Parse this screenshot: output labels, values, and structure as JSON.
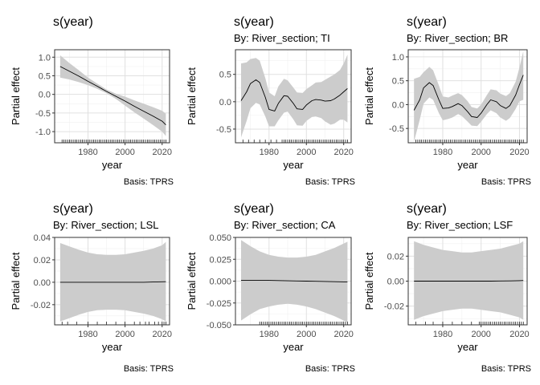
{
  "chart_data": [
    {
      "type": "line",
      "title": "s(year)",
      "subtitle": "",
      "xlabel": "year",
      "ylabel": "Partial effect",
      "caption": "Basis: TPRS",
      "xlim": [
        1962,
        2024
      ],
      "ylim": [
        -1.3,
        1.2
      ],
      "xticks": [
        1980,
        2000,
        2020
      ],
      "yticks": [
        -1.0,
        -0.5,
        0.0,
        0.5,
        1.0
      ],
      "ytick_labels": [
        "-1.0",
        "-0.5",
        "0.0",
        "0.5",
        "1.0"
      ],
      "x": [
        1965,
        1970,
        1975,
        1980,
        1985,
        1990,
        1995,
        2000,
        2005,
        2010,
        2015,
        2020,
        2022
      ],
      "y": [
        0.75,
        0.62,
        0.49,
        0.35,
        0.22,
        0.08,
        -0.05,
        -0.18,
        -0.32,
        -0.45,
        -0.58,
        -0.72,
        -0.82
      ],
      "lower": [
        0.45,
        0.4,
        0.33,
        0.25,
        0.15,
        0.03,
        -0.12,
        -0.3,
        -0.48,
        -0.65,
        -0.82,
        -1.0,
        -1.12
      ],
      "upper": [
        1.05,
        0.84,
        0.65,
        0.45,
        0.29,
        0.13,
        0.02,
        -0.06,
        -0.16,
        -0.25,
        -0.34,
        -0.44,
        -0.52
      ],
      "rug": [
        1966,
        1967,
        1968,
        1969,
        1970,
        1971,
        1972,
        1973,
        1974,
        1975,
        1976,
        1977,
        1978,
        1979,
        1980,
        1981,
        1982,
        1983,
        1984,
        1985,
        1986,
        1987,
        1988,
        1989,
        1990,
        1991,
        1992,
        1993,
        1994,
        1995,
        1996,
        1997,
        1998,
        1999,
        2000,
        2001,
        2002,
        2003,
        2004,
        2005,
        2006,
        2007,
        2008,
        2009,
        2010,
        2011,
        2012,
        2013,
        2014,
        2015,
        2016,
        2017,
        2018,
        2019,
        2020,
        2021,
        2022
      ]
    },
    {
      "type": "line",
      "title": "s(year)",
      "subtitle": "By: River_section; TI",
      "xlabel": "year",
      "ylabel": "Partial effect",
      "caption": "Basis: TPRS",
      "xlim": [
        1962,
        2024
      ],
      "ylim": [
        -0.75,
        0.95
      ],
      "xticks": [
        1980,
        2000,
        2020
      ],
      "yticks": [
        -0.5,
        0.0,
        0.5
      ],
      "ytick_labels": [
        "-0.5",
        "0.0",
        "0.5"
      ],
      "x": [
        1965,
        1968,
        1970,
        1973,
        1975,
        1978,
        1980,
        1983,
        1985,
        1988,
        1990,
        1993,
        1995,
        1998,
        2000,
        2003,
        2005,
        2008,
        2010,
        2013,
        2015,
        2018,
        2020,
        2022
      ],
      "y": [
        0.02,
        0.18,
        0.33,
        0.4,
        0.35,
        0.08,
        -0.14,
        -0.17,
        -0.03,
        0.11,
        0.1,
        -0.03,
        -0.13,
        -0.14,
        -0.06,
        0.02,
        0.04,
        0.03,
        0.01,
        0.02,
        0.05,
        0.12,
        0.18,
        0.24
      ],
      "lower": [
        -0.65,
        -0.35,
        -0.12,
        -0.02,
        -0.05,
        -0.27,
        -0.45,
        -0.45,
        -0.34,
        -0.2,
        -0.18,
        -0.32,
        -0.43,
        -0.44,
        -0.35,
        -0.28,
        -0.27,
        -0.3,
        -0.36,
        -0.42,
        -0.4,
        -0.33,
        -0.33,
        -0.38
      ],
      "upper": [
        0.7,
        0.72,
        0.78,
        0.8,
        0.75,
        0.43,
        0.17,
        0.1,
        0.28,
        0.42,
        0.39,
        0.26,
        0.17,
        0.16,
        0.23,
        0.3,
        0.35,
        0.36,
        0.4,
        0.46,
        0.5,
        0.58,
        0.7,
        0.86
      ],
      "rug": [
        1966,
        1969,
        1972,
        1975,
        1978,
        1981,
        1984,
        1987,
        1988,
        1989,
        1990,
        1991,
        1992,
        1993,
        1994,
        1995,
        1996,
        1997,
        1998,
        1999,
        2000,
        2001,
        2002,
        2003,
        2004,
        2005,
        2006,
        2007,
        2008,
        2009,
        2010,
        2011,
        2012,
        2013,
        2014,
        2015,
        2016,
        2017,
        2018,
        2019,
        2020,
        2021,
        2022
      ]
    },
    {
      "type": "line",
      "title": "s(year)",
      "subtitle": "By: River_section; BR",
      "xlabel": "year",
      "ylabel": "Partial effect",
      "caption": "Basis: TPRS",
      "xlim": [
        1962,
        2024
      ],
      "ylim": [
        -0.8,
        1.15
      ],
      "xticks": [
        1980,
        2000,
        2020
      ],
      "yticks": [
        -0.5,
        0.0,
        0.5,
        1.0
      ],
      "ytick_labels": [
        "-0.5",
        "0.0",
        "0.5",
        "1.0"
      ],
      "x": [
        1965,
        1968,
        1970,
        1973,
        1975,
        1978,
        1980,
        1983,
        1985,
        1988,
        1990,
        1993,
        1995,
        1998,
        2000,
        2003,
        2005,
        2008,
        2010,
        2013,
        2015,
        2018,
        2020,
        2022
      ],
      "y": [
        -0.12,
        0.1,
        0.35,
        0.46,
        0.4,
        0.1,
        -0.08,
        -0.07,
        -0.04,
        0.02,
        -0.02,
        -0.15,
        -0.25,
        -0.27,
        -0.18,
        0.0,
        0.1,
        0.06,
        -0.02,
        -0.08,
        -0.02,
        0.2,
        0.42,
        0.62
      ],
      "lower": [
        -0.78,
        -0.32,
        0.02,
        0.15,
        0.1,
        -0.18,
        -0.33,
        -0.3,
        -0.27,
        -0.2,
        -0.24,
        -0.36,
        -0.44,
        -0.45,
        -0.36,
        -0.2,
        -0.12,
        -0.18,
        -0.27,
        -0.34,
        -0.28,
        -0.09,
        0.07,
        0.1
      ],
      "upper": [
        0.54,
        0.58,
        0.68,
        0.79,
        0.72,
        0.4,
        0.17,
        0.15,
        0.19,
        0.24,
        0.2,
        0.07,
        -0.05,
        -0.08,
        0.0,
        0.2,
        0.32,
        0.3,
        0.23,
        0.18,
        0.24,
        0.48,
        0.78,
        1.12
      ],
      "rug": [
        1966,
        1967,
        1968,
        1969,
        1970,
        1971,
        1972,
        1973,
        1974,
        1975,
        1976,
        1977,
        1978,
        1979,
        1980,
        1981,
        1982,
        1983,
        1984,
        1985,
        1986,
        1987,
        1988,
        1989,
        1990,
        1991,
        1992,
        1993,
        1994,
        1995,
        1996,
        1997,
        1998,
        1999,
        2000,
        2001,
        2002,
        2003,
        2004,
        2005,
        2006,
        2007,
        2008,
        2009,
        2010,
        2011,
        2012,
        2013,
        2014,
        2015,
        2016,
        2017,
        2018,
        2019,
        2020,
        2021,
        2022
      ]
    },
    {
      "type": "line",
      "title": "s(year)",
      "subtitle": "By: River_section; LSL",
      "xlabel": "year",
      "ylabel": "Partial effect",
      "caption": "Basis: TPRS",
      "xlim": [
        1962,
        2024
      ],
      "ylim": [
        -0.038,
        0.04
      ],
      "xticks": [
        1980,
        2000,
        2020
      ],
      "yticks": [
        -0.02,
        0.0,
        0.02,
        0.04
      ],
      "ytick_labels": [
        "-0.02",
        "0.00",
        "0.02",
        "0.04"
      ],
      "x": [
        1965,
        1970,
        1975,
        1980,
        1985,
        1990,
        1995,
        2000,
        2005,
        2010,
        2015,
        2020,
        2022
      ],
      "y": [
        0.0,
        0.0,
        0.0,
        0.0,
        0.0,
        0.0,
        0.0,
        0.0,
        0.0,
        0.0,
        0.0002,
        0.0004,
        0.0005
      ],
      "lower": [
        -0.035,
        -0.032,
        -0.029,
        -0.0265,
        -0.025,
        -0.0245,
        -0.0245,
        -0.025,
        -0.0265,
        -0.028,
        -0.03,
        -0.033,
        -0.035
      ],
      "upper": [
        0.035,
        0.032,
        0.029,
        0.0265,
        0.025,
        0.0245,
        0.0245,
        0.025,
        0.0265,
        0.028,
        0.03,
        0.033,
        0.036
      ],
      "rug": [
        1966,
        1969,
        1974,
        1980,
        1985,
        1990,
        1995,
        2000,
        2005,
        2008,
        2011,
        2013,
        2016,
        2018,
        2020,
        2021,
        2022
      ]
    },
    {
      "type": "line",
      "title": "s(year)",
      "subtitle": "By: River_section; CA",
      "xlabel": "year",
      "ylabel": "Partial effect",
      "caption": "Basis: TPRS",
      "xlim": [
        1962,
        2024
      ],
      "ylim": [
        -0.05,
        0.05
      ],
      "xticks": [
        1980,
        2000,
        2020
      ],
      "yticks": [
        -0.05,
        -0.025,
        0.0,
        0.025,
        0.05
      ],
      "ytick_labels": [
        "-0.050",
        "-0.025",
        "0.000",
        "0.025",
        "0.050"
      ],
      "x": [
        1965,
        1970,
        1975,
        1980,
        1985,
        1990,
        1995,
        2000,
        2005,
        2010,
        2015,
        2020,
        2022
      ],
      "y": [
        0.001,
        0.001,
        0.001,
        0.0008,
        0.0006,
        0.0004,
        0.0002,
        0.0,
        -0.0002,
        -0.0004,
        -0.0006,
        -0.0008,
        -0.001
      ],
      "lower": [
        -0.045,
        -0.038,
        -0.032,
        -0.029,
        -0.027,
        -0.026,
        -0.027,
        -0.029,
        -0.032,
        -0.036,
        -0.04,
        -0.045,
        -0.047
      ],
      "upper": [
        0.047,
        0.04,
        0.034,
        0.03,
        0.028,
        0.027,
        0.027,
        0.028,
        0.03,
        0.034,
        0.038,
        0.043,
        0.045
      ],
      "rug": [
        1975,
        1976,
        1977,
        1978,
        1979,
        1980,
        1981,
        1982,
        1983,
        1984,
        1985,
        1986,
        1987,
        1988,
        1989,
        1990,
        1991,
        1992,
        1993,
        1994,
        1995,
        1996,
        1997,
        1998,
        1999,
        2000,
        2001,
        2002,
        2003,
        2004,
        2005,
        2006,
        2007,
        2008,
        2009,
        2010,
        2011,
        2012,
        2013,
        2014,
        2015,
        2016,
        2017,
        2018,
        2019,
        2020,
        2021,
        2022
      ]
    },
    {
      "type": "line",
      "title": "s(year)",
      "subtitle": "By: River_section; LSF",
      "xlabel": "year",
      "ylabel": "Partial effect",
      "caption": "Basis: TPRS",
      "xlim": [
        1962,
        2024
      ],
      "ylim": [
        -0.035,
        0.035
      ],
      "xticks": [
        1980,
        2000,
        2020
      ],
      "yticks": [
        -0.02,
        0.0,
        0.02
      ],
      "ytick_labels": [
        "-0.02",
        "0.00",
        "0.02"
      ],
      "x": [
        1965,
        1970,
        1975,
        1980,
        1985,
        1990,
        1995,
        2000,
        2005,
        2010,
        2015,
        2020,
        2022
      ],
      "y": [
        0.0,
        0.0,
        0.0,
        0.0,
        0.0,
        0.0,
        0.0,
        0.0,
        0.0,
        0.0001,
        0.0002,
        0.0004,
        0.0005
      ],
      "lower": [
        -0.031,
        -0.028,
        -0.026,
        -0.024,
        -0.023,
        -0.022,
        -0.022,
        -0.023,
        -0.024,
        -0.025,
        -0.027,
        -0.029,
        -0.031
      ],
      "upper": [
        0.032,
        0.029,
        0.027,
        0.025,
        0.024,
        0.023,
        0.023,
        0.024,
        0.025,
        0.026,
        0.028,
        0.03,
        0.032
      ],
      "rug": [
        1966,
        1971,
        1975,
        1980,
        1985,
        1990,
        1995,
        1999,
        2000,
        2001,
        2002,
        2003,
        2004,
        2005,
        2006,
        2007,
        2008,
        2009,
        2010,
        2011,
        2012,
        2013,
        2014,
        2015,
        2016,
        2017,
        2018,
        2019,
        2020,
        2021,
        2022
      ]
    }
  ],
  "colors": {
    "band": "#cccccc",
    "line": "#000000",
    "grid_major": "#e0e0e0",
    "grid_minor": "#f0f0f0",
    "border": "#333333",
    "tick_text": "#4d4d4d"
  }
}
